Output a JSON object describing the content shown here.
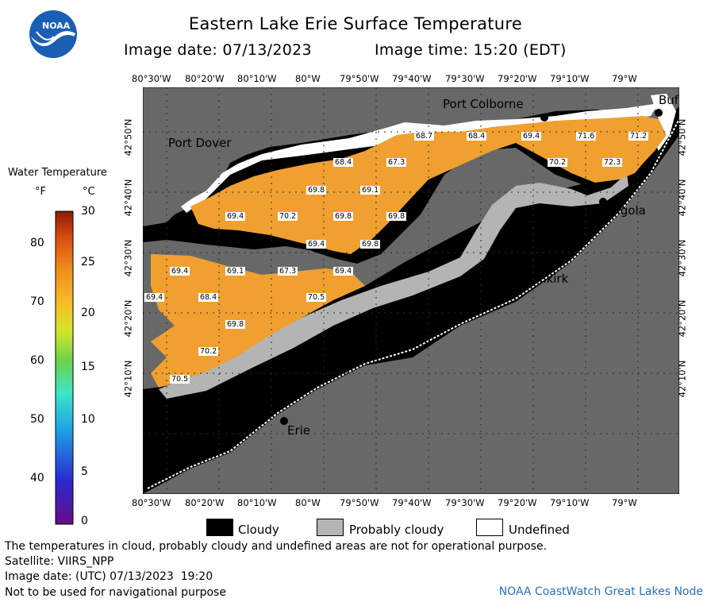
{
  "header": {
    "title": "Eastern Lake Erie Surface Temperature",
    "image_date": "Image date: 07/13/2023",
    "image_time": "Image time: 15:20 (EDT)"
  },
  "logo": {
    "text": "NOAA",
    "icon": "noaa-logo"
  },
  "legend": {
    "title": "Water Temperature",
    "unit_f": "°F",
    "unit_c": "°C",
    "f_ticks": [
      "80",
      "70",
      "60",
      "50",
      "40"
    ],
    "c_ticks": [
      "30",
      "25",
      "20",
      "15",
      "10",
      "5",
      "0"
    ],
    "colors": [
      "#6a0a8a",
      "#2a2ad0",
      "#1ea0e6",
      "#3ee6c8",
      "#6ad24a",
      "#d6e62a",
      "#f6c02a",
      "#f08a1a",
      "#d84a10",
      "#8a1a08"
    ]
  },
  "map": {
    "top_lon_labels": [
      "80°30'W",
      "80°20'W",
      "80°10'W",
      "80°W",
      "79°50'W",
      "79°40'W",
      "79°30'W",
      "79°20'W",
      "79°10'W",
      "79°W"
    ],
    "bottom_lon_labels": [
      "80°30'W",
      "80°20'W",
      "80°10'W",
      "80°W",
      "79°50'W",
      "79°40'W",
      "79°30'W",
      "79°20'W",
      "79°10'W",
      "79°W"
    ],
    "left_lat_labels": [
      "42°50'N",
      "42°40'N",
      "42°30'N",
      "42°20'N",
      "42°10'N"
    ],
    "right_lat_labels": [
      "42°50'N",
      "42°40'N",
      "42°30'N",
      "42°20'N",
      "42°10'N"
    ],
    "cities": [
      "Port Colborne",
      "Port Dover",
      "Angola",
      "Dunkirk",
      "Erie",
      "Buf"
    ],
    "temperature_labels": [
      "68.7",
      "68.4",
      "69.4",
      "71.6",
      "71.2",
      "68.4",
      "67.3",
      "70.2",
      "72.3",
      "69.8",
      "69.1",
      "69.4",
      "70.2",
      "69.8",
      "69.8",
      "69.4",
      "69.8",
      "69.4",
      "69.1",
      "67.3",
      "69.4",
      "69.4",
      "68.4",
      "70.5",
      "69.8",
      "70.2",
      "70.5"
    ],
    "colors": {
      "land": "#686868",
      "cloud": "#000000",
      "probably_cloudy": "#b4b4b4",
      "undefined": "#ffffff",
      "water": "#f0a030",
      "grid": "#2a2a2a"
    }
  },
  "key": {
    "cloudy": "Cloudy",
    "probably_cloudy": "Probably cloudy",
    "undefined": "Undefined"
  },
  "footer": {
    "disclaimer": "The temperatures in cloud, probably cloudy and undefined areas are not for operational purpose.",
    "satellite": "Satellite: VIIRS_NPP",
    "utc_date": "Image date: (UTC) 07/13/2023  19:20",
    "nav_warning": "Not to be used for navigational purpose",
    "node": "NOAA CoastWatch Great Lakes Node"
  }
}
